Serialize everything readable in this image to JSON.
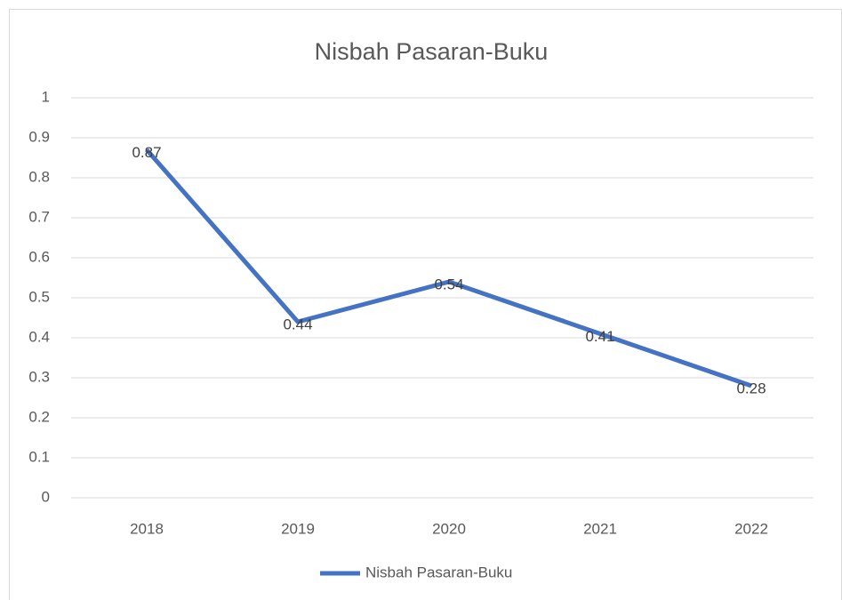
{
  "chart_data": {
    "type": "line",
    "title": "Nisbah Pasaran-Buku",
    "categories": [
      "2018",
      "2019",
      "2020",
      "2021",
      "2022"
    ],
    "series": [
      {
        "name": "Nisbah Pasaran-Buku",
        "color": "#4472c4",
        "values": [
          0.87,
          0.44,
          0.54,
          0.41,
          0.28
        ]
      }
    ],
    "ylim": [
      0,
      1
    ],
    "yticks": [
      0,
      0.1,
      0.2,
      0.3,
      0.4,
      0.5,
      0.6,
      0.7,
      0.8,
      0.9,
      1
    ],
    "grid": true,
    "legend": "bottom"
  }
}
